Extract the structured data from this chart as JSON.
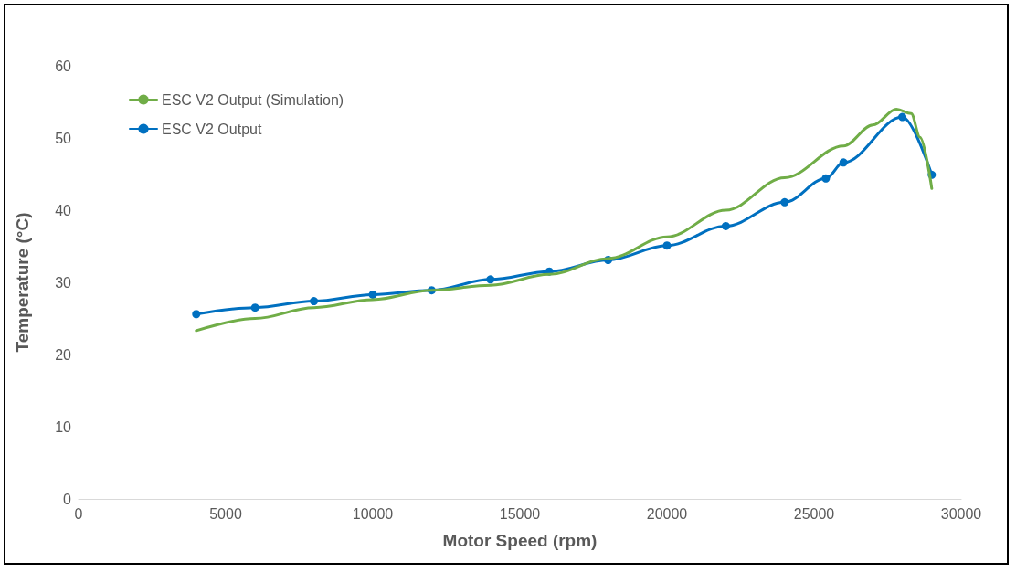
{
  "chart_data": {
    "type": "line",
    "xlabel": "Motor Speed (rpm)",
    "ylabel": "Temperature (°C)",
    "xlim": [
      0,
      30000
    ],
    "xticks": [
      0,
      5000,
      10000,
      15000,
      20000,
      25000,
      30000
    ],
    "ylim": [
      0,
      60
    ],
    "yticks": [
      0,
      10,
      20,
      30,
      40,
      50,
      60
    ],
    "grid": false,
    "legend": "top left",
    "marker": "circle",
    "line_style": "solid",
    "series": [
      {
        "name": "ESC V2 Output (Simulation)",
        "color": "#70ad47",
        "marker": "none",
        "x": [
          4000,
          6000,
          8000,
          10000,
          12000,
          14000,
          16000,
          18000,
          20000,
          22000,
          24000,
          26000,
          27000,
          27800,
          28300,
          28600,
          29000
        ],
        "values": [
          23.3,
          25.0,
          26.5,
          27.6,
          28.9,
          29.6,
          31.1,
          33.3,
          36.3,
          40.0,
          44.5,
          48.9,
          51.8,
          54.0,
          53.4,
          50.1,
          43.0
        ]
      },
      {
        "name": "ESC V2 Output",
        "color": "#0070c0",
        "x": [
          4000,
          6000,
          8000,
          10000,
          12000,
          14000,
          16000,
          18000,
          20000,
          22000,
          24000,
          25400,
          26000,
          28000,
          29000
        ],
        "values": [
          25.6,
          26.5,
          27.4,
          28.3,
          28.9,
          30.4,
          31.5,
          33.1,
          35.1,
          37.8,
          41.1,
          44.4,
          46.6,
          52.9,
          44.9
        ]
      }
    ]
  }
}
